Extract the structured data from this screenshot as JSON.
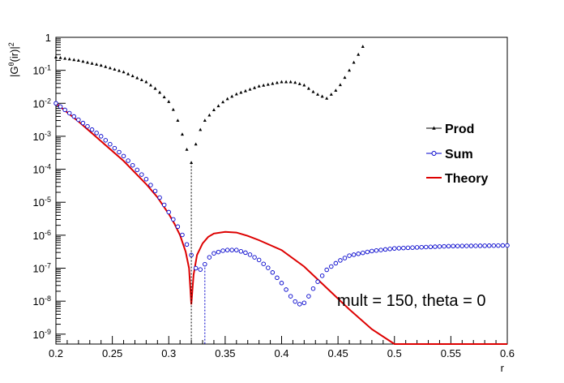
{
  "chart_data": {
    "type": "scatter",
    "title": "",
    "xlabel": "r",
    "ylabel": "|G^θ(ir)|²",
    "ylabel_base": "|G",
    "ylabel_sup": "θ",
    "ylabel_mid": "(ir)|",
    "ylabel_pow": "2",
    "xlim": [
      0.2,
      0.6
    ],
    "ylim_log10": [
      -9.3,
      0
    ],
    "log_y": true,
    "x_ticks": [
      "0.2",
      "0.25",
      "0.3",
      "0.35",
      "0.4",
      "0.45",
      "0.5",
      "0.55",
      "0.6"
    ],
    "y_ticks": [
      {
        "base": "10",
        "exp": "-9",
        "v": -9
      },
      {
        "base": "10",
        "exp": "-8",
        "v": -8
      },
      {
        "base": "10",
        "exp": "-7",
        "v": -7
      },
      {
        "base": "10",
        "exp": "-6",
        "v": -6
      },
      {
        "base": "10",
        "exp": "-5",
        "v": -5
      },
      {
        "base": "10",
        "exp": "-4",
        "v": -4
      },
      {
        "base": "10",
        "exp": "-3",
        "v": -3
      },
      {
        "base": "10",
        "exp": "-2",
        "v": -2
      },
      {
        "base": "10",
        "exp": "-1",
        "v": -1
      },
      {
        "base": "1",
        "exp": "",
        "v": 0
      }
    ],
    "legend_position": "right",
    "annotation": "mult = 150, theta = 0",
    "series": [
      {
        "name": "Prod",
        "color": "#000000",
        "marker": "filled-triangle",
        "x": [
          0.2,
          0.22,
          0.24,
          0.26,
          0.28,
          0.29,
          0.3,
          0.305,
          0.31,
          0.315,
          0.32,
          0.325,
          0.33,
          0.34,
          0.35,
          0.36,
          0.38,
          0.4,
          0.41,
          0.42,
          0.43,
          0.44,
          0.45,
          0.46,
          0.47,
          0.475
        ],
        "y_log10": [
          -0.6,
          -0.7,
          -0.85,
          -1.05,
          -1.35,
          -1.6,
          -1.95,
          -2.25,
          -2.7,
          -3.3,
          -3.8,
          -3.1,
          -2.6,
          -2.2,
          -1.9,
          -1.72,
          -1.48,
          -1.35,
          -1.35,
          -1.45,
          -1.7,
          -1.85,
          -1.55,
          -1.0,
          -0.4,
          -0.1
        ]
      },
      {
        "name": "Sum",
        "color": "#0000cc",
        "marker": "open-circle",
        "x": [
          0.2,
          0.22,
          0.24,
          0.26,
          0.28,
          0.29,
          0.3,
          0.31,
          0.315,
          0.32,
          0.325,
          0.33,
          0.335,
          0.34,
          0.35,
          0.36,
          0.37,
          0.38,
          0.39,
          0.4,
          0.41,
          0.415,
          0.42,
          0.425,
          0.43,
          0.44,
          0.45,
          0.46,
          0.48,
          0.5,
          0.52,
          0.55,
          0.58,
          0.6
        ],
        "y_log10": [
          -2.0,
          -2.5,
          -3.0,
          -3.6,
          -4.3,
          -4.75,
          -5.3,
          -5.85,
          -6.2,
          -6.6,
          -7.1,
          -7.0,
          -6.7,
          -6.55,
          -6.45,
          -6.45,
          -6.55,
          -6.75,
          -7.05,
          -7.45,
          -7.95,
          -8.1,
          -8.05,
          -7.8,
          -7.5,
          -7.05,
          -6.8,
          -6.62,
          -6.48,
          -6.4,
          -6.37,
          -6.33,
          -6.32,
          -6.31
        ]
      },
      {
        "name": "Theory",
        "color": "#dd0000",
        "marker": "line",
        "x": [
          0.2,
          0.22,
          0.24,
          0.26,
          0.28,
          0.29,
          0.3,
          0.305,
          0.31,
          0.315,
          0.318,
          0.32,
          0.322,
          0.325,
          0.33,
          0.335,
          0.34,
          0.35,
          0.36,
          0.37,
          0.38,
          0.4,
          0.42,
          0.44,
          0.46,
          0.48,
          0.5,
          0.51,
          0.52,
          0.6
        ],
        "y_log10": [
          -2.0,
          -2.55,
          -3.15,
          -3.75,
          -4.45,
          -4.85,
          -5.35,
          -5.65,
          -6.0,
          -6.5,
          -7.0,
          -8.1,
          -7.2,
          -6.6,
          -6.25,
          -6.05,
          -5.95,
          -5.9,
          -5.92,
          -6.02,
          -6.15,
          -6.45,
          -6.95,
          -7.6,
          -8.25,
          -8.85,
          -9.3,
          -9.3,
          -9.3,
          -9.3
        ]
      }
    ]
  }
}
